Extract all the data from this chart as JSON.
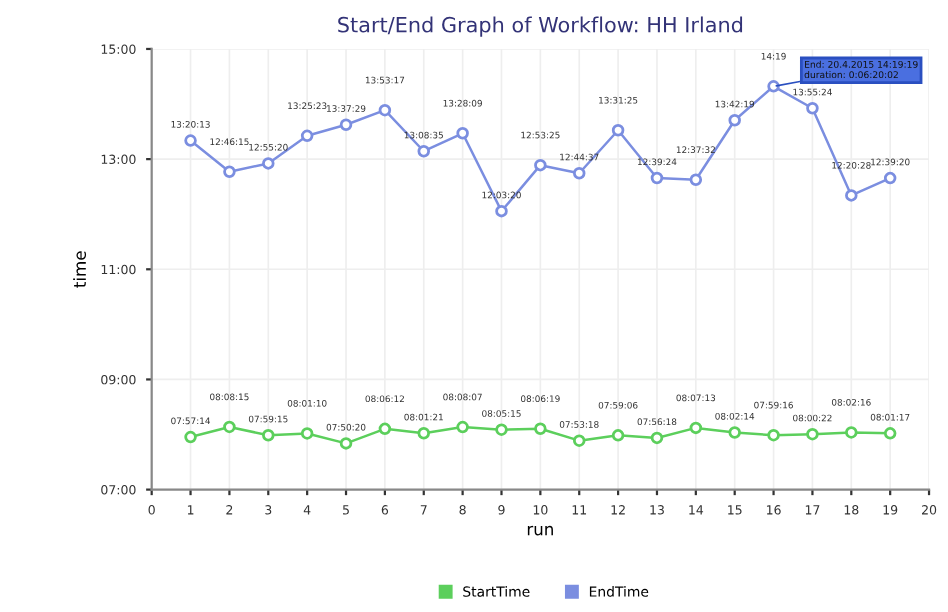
{
  "chart_data": {
    "type": "line",
    "title": "Start/End Graph of Workflow: HH Irland",
    "xlabel": "run",
    "ylabel": "time",
    "x": [
      1,
      2,
      3,
      4,
      5,
      6,
      7,
      8,
      9,
      10,
      11,
      12,
      13,
      14,
      15,
      16,
      17,
      18,
      19
    ],
    "series": [
      {
        "name": "StartTime",
        "color": "#5ccf5c",
        "values": [
          7.9539,
          8.1375,
          7.9875,
          8.0194,
          7.8389,
          8.1033,
          8.0225,
          8.1353,
          8.0875,
          8.1053,
          7.8883,
          7.985,
          7.9383,
          8.1203,
          8.0372,
          7.9878,
          8.0061,
          8.0378,
          8.0214
        ],
        "value_labels": [
          "07:57:14",
          "08:08:15",
          "07:59:15",
          "08:01:10",
          "07:50:20",
          "08:06:12",
          "08:01:21",
          "08:08:07",
          "08:05:15",
          "08:06:19",
          "07:53:18",
          "07:59:06",
          "07:56:18",
          "08:07:13",
          "08:02:14",
          "07:59:16",
          "08:00:22",
          "08:02:16",
          "08:01:17"
        ]
      },
      {
        "name": "EndTime",
        "color": "#7b8ee0",
        "values": [
          13.3369,
          12.7708,
          12.9222,
          13.4231,
          13.6247,
          13.8881,
          13.1431,
          13.4692,
          12.0556,
          12.8903,
          12.7436,
          13.5236,
          12.6567,
          12.6256,
          13.7053,
          14.3219,
          13.9233,
          12.3411,
          12.6556
        ],
        "value_labels": [
          "13:20:13",
          "12:46:15",
          "12:55:20",
          "13:25:23",
          "13:37:29",
          "13:53:17",
          "13:08:35",
          "13:28:09",
          "12:03:20",
          "12:53:25",
          "12:44:37",
          "13:31:25",
          "12:39:24",
          "12:37:32",
          "13:42:19",
          "14:19",
          "13:55:24",
          "12:20:28",
          "12:39:20"
        ]
      }
    ],
    "annotations": [
      {
        "text": "End: 20.4.2015 14:19:19\nduration: 0:06:20:02",
        "x": 16,
        "y": 14.3219
      }
    ],
    "xlim": [
      0,
      20
    ],
    "xticks": [
      0,
      1,
      2,
      3,
      4,
      5,
      6,
      7,
      8,
      9,
      10,
      11,
      12,
      13,
      14,
      15,
      16,
      17,
      18,
      19,
      20
    ],
    "ylim": [
      7,
      15
    ],
    "yticks": [
      {
        "value": 7,
        "label": "07:00"
      },
      {
        "value": 9,
        "label": "09:00"
      },
      {
        "value": 11,
        "label": "11:00"
      },
      {
        "value": 13,
        "label": "13:00"
      },
      {
        "value": 15,
        "label": "15:00"
      }
    ],
    "grid": true,
    "legend": "bottom",
    "marker": "circle",
    "line_style": "solid"
  }
}
